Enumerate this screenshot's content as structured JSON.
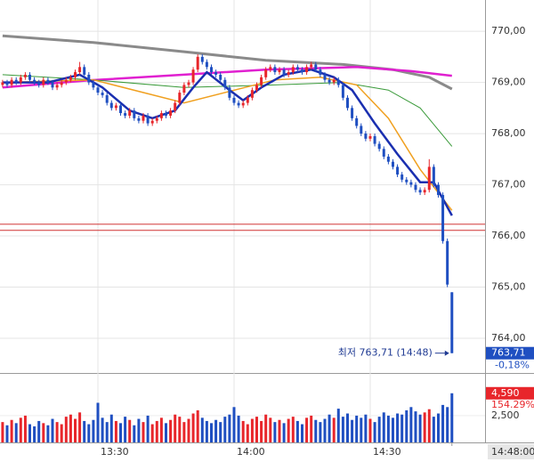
{
  "chart_data": {
    "type": "candlestick",
    "xlim": [
      -0.57,
      106.3
    ],
    "xticks": [
      {
        "value": 21,
        "label": "13:30"
      },
      {
        "value": 51,
        "label": "14:00"
      },
      {
        "value": 81,
        "label": "14:30"
      }
    ],
    "cursor_time": {
      "value": 99,
      "label": "14:48:00"
    },
    "ylim": [
      763.34,
      770.61
    ],
    "yticks": [
      {
        "value": 764,
        "label": "764,00"
      },
      {
        "value": 765,
        "label": "765,00"
      },
      {
        "value": 766,
        "label": "766,00"
      },
      {
        "value": 767,
        "label": "767,00"
      },
      {
        "value": 768,
        "label": "768,00"
      },
      {
        "value": 769,
        "label": "769,00"
      },
      {
        "value": 770,
        "label": "770,00"
      }
    ],
    "grid": true,
    "up_color": "#e8262b",
    "down_color": "#1f4fc1",
    "ohlc": [
      [
        768.95,
        769.05,
        768.9,
        769.0
      ],
      [
        769.0,
        769.05,
        768.9,
        768.95
      ],
      [
        768.95,
        769.1,
        768.9,
        769.05
      ],
      [
        769.05,
        769.1,
        768.95,
        769.0
      ],
      [
        769.0,
        769.15,
        768.95,
        769.1
      ],
      [
        769.1,
        769.2,
        769.05,
        769.15
      ],
      [
        769.15,
        769.2,
        769.0,
        769.05
      ],
      [
        769.05,
        769.1,
        768.95,
        769.0
      ],
      [
        769.0,
        769.05,
        768.9,
        768.95
      ],
      [
        768.95,
        769.1,
        768.9,
        769.05
      ],
      [
        769.05,
        769.1,
        768.95,
        769.0
      ],
      [
        769.0,
        769.05,
        768.85,
        768.9
      ],
      [
        768.9,
        769.0,
        768.85,
        768.95
      ],
      [
        768.95,
        769.05,
        768.9,
        769.0
      ],
      [
        769.0,
        769.1,
        768.95,
        769.05
      ],
      [
        769.05,
        769.15,
        769.0,
        769.1
      ],
      [
        769.1,
        769.25,
        769.05,
        769.2
      ],
      [
        769.2,
        769.4,
        769.15,
        769.3
      ],
      [
        769.3,
        769.35,
        769.1,
        769.15
      ],
      [
        769.15,
        769.2,
        768.95,
        769.0
      ],
      [
        769.0,
        769.05,
        768.85,
        768.9
      ],
      [
        768.9,
        768.95,
        768.75,
        768.8
      ],
      [
        768.8,
        768.85,
        768.7,
        768.75
      ],
      [
        768.75,
        768.8,
        768.55,
        768.6
      ],
      [
        768.6,
        768.65,
        768.45,
        768.5
      ],
      [
        768.5,
        768.6,
        768.45,
        768.55
      ],
      [
        768.55,
        768.6,
        768.35,
        768.4
      ],
      [
        768.4,
        768.45,
        768.3,
        768.35
      ],
      [
        768.35,
        768.5,
        768.3,
        768.45
      ],
      [
        768.45,
        768.5,
        768.25,
        768.3
      ],
      [
        768.3,
        768.35,
        768.2,
        768.25
      ],
      [
        768.25,
        768.4,
        768.2,
        768.35
      ],
      [
        768.35,
        768.4,
        768.15,
        768.2
      ],
      [
        768.2,
        768.3,
        768.15,
        768.25
      ],
      [
        768.25,
        768.35,
        768.2,
        768.3
      ],
      [
        768.3,
        768.45,
        768.25,
        768.4
      ],
      [
        768.4,
        768.45,
        768.3,
        768.35
      ],
      [
        768.35,
        768.5,
        768.3,
        768.45
      ],
      [
        768.45,
        768.65,
        768.4,
        768.6
      ],
      [
        768.6,
        768.85,
        768.55,
        768.8
      ],
      [
        768.8,
        769.0,
        768.75,
        768.95
      ],
      [
        768.95,
        769.05,
        768.9,
        769.0
      ],
      [
        769.0,
        769.3,
        768.95,
        769.25
      ],
      [
        769.25,
        769.55,
        769.2,
        769.5
      ],
      [
        769.5,
        769.55,
        769.35,
        769.4
      ],
      [
        769.4,
        769.45,
        769.25,
        769.3
      ],
      [
        769.3,
        769.35,
        769.15,
        769.2
      ],
      [
        769.2,
        769.25,
        769.1,
        769.15
      ],
      [
        769.15,
        769.2,
        769.0,
        769.05
      ],
      [
        769.05,
        769.1,
        768.85,
        768.9
      ],
      [
        768.9,
        768.95,
        768.65,
        768.7
      ],
      [
        768.7,
        768.75,
        768.55,
        768.6
      ],
      [
        768.6,
        768.65,
        768.5,
        768.55
      ],
      [
        768.55,
        768.65,
        768.5,
        768.6
      ],
      [
        768.6,
        768.75,
        768.55,
        768.7
      ],
      [
        768.7,
        768.9,
        768.65,
        768.85
      ],
      [
        768.85,
        769.0,
        768.8,
        768.95
      ],
      [
        768.95,
        769.15,
        768.9,
        769.1
      ],
      [
        769.1,
        769.3,
        769.05,
        769.25
      ],
      [
        769.25,
        769.35,
        769.2,
        769.3
      ],
      [
        769.3,
        769.35,
        769.15,
        769.2
      ],
      [
        769.2,
        769.3,
        769.15,
        769.25
      ],
      [
        769.25,
        769.3,
        769.1,
        769.15
      ],
      [
        769.15,
        769.25,
        769.1,
        769.2
      ],
      [
        769.2,
        769.35,
        769.15,
        769.3
      ],
      [
        769.3,
        769.35,
        769.2,
        769.25
      ],
      [
        769.25,
        769.3,
        769.15,
        769.2
      ],
      [
        769.2,
        769.35,
        769.15,
        769.3
      ],
      [
        769.3,
        769.4,
        769.25,
        769.35
      ],
      [
        769.35,
        769.4,
        769.2,
        769.25
      ],
      [
        769.25,
        769.3,
        769.1,
        769.15
      ],
      [
        769.15,
        769.2,
        769.0,
        769.05
      ],
      [
        769.05,
        769.1,
        768.95,
        769.0
      ],
      [
        769.0,
        769.1,
        768.95,
        769.05
      ],
      [
        769.05,
        769.1,
        768.9,
        768.95
      ],
      [
        768.95,
        769.0,
        768.65,
        768.7
      ],
      [
        768.7,
        768.75,
        768.45,
        768.5
      ],
      [
        768.5,
        768.55,
        768.25,
        768.3
      ],
      [
        768.3,
        768.35,
        768.1,
        768.15
      ],
      [
        768.15,
        768.2,
        767.95,
        768.0
      ],
      [
        768.0,
        768.05,
        767.85,
        767.9
      ],
      [
        767.9,
        768.0,
        767.85,
        767.95
      ],
      [
        767.95,
        768.0,
        767.75,
        767.8
      ],
      [
        767.8,
        767.85,
        767.65,
        767.7
      ],
      [
        767.7,
        767.75,
        767.5,
        767.55
      ],
      [
        767.55,
        767.6,
        767.4,
        767.45
      ],
      [
        767.45,
        767.5,
        767.3,
        767.35
      ],
      [
        767.35,
        767.4,
        767.15,
        767.2
      ],
      [
        767.2,
        767.25,
        767.05,
        767.1
      ],
      [
        767.1,
        767.15,
        767.0,
        767.05
      ],
      [
        767.05,
        767.1,
        766.95,
        767.0
      ],
      [
        767.0,
        767.05,
        766.85,
        766.9
      ],
      [
        766.9,
        766.95,
        766.8,
        766.85
      ],
      [
        766.85,
        766.95,
        766.8,
        766.9
      ],
      [
        766.9,
        767.5,
        766.85,
        767.35
      ],
      [
        767.35,
        767.4,
        766.95,
        767.0
      ],
      [
        767.0,
        767.05,
        766.75,
        766.8
      ],
      [
        766.8,
        766.85,
        765.85,
        765.9
      ],
      [
        765.9,
        765.95,
        765.0,
        765.05
      ],
      [
        764.9,
        764.9,
        763.71,
        763.71
      ]
    ],
    "lines": [
      {
        "color": "#8a8a8a",
        "width": 3,
        "x": [
          0,
          20,
          40,
          58,
          75,
          86,
          94,
          99
        ],
        "values": [
          769.91,
          769.78,
          769.6,
          769.43,
          769.35,
          769.25,
          769.1,
          768.87
        ]
      },
      {
        "color": "#e020d0",
        "width": 2.5,
        "x": [
          0,
          19,
          40,
          58,
          78,
          90,
          99
        ],
        "values": [
          768.9,
          769.04,
          769.15,
          769.25,
          769.3,
          769.22,
          769.13
        ]
      },
      {
        "color": "#3a9a3a",
        "width": 1,
        "x": [
          0,
          20,
          40,
          60,
          75,
          85,
          92,
          99
        ],
        "values": [
          769.15,
          769.05,
          768.9,
          768.95,
          769.0,
          768.85,
          768.5,
          767.75
        ]
      },
      {
        "color": "#f0a020",
        "width": 1.5,
        "x": [
          0,
          20,
          40,
          60,
          70,
          78,
          85,
          92,
          99
        ],
        "values": [
          769.0,
          769.05,
          768.6,
          769.05,
          769.1,
          768.95,
          768.3,
          767.3,
          766.5
        ]
      },
      {
        "color": "#1a2fb0",
        "width": 2.5,
        "x": [
          0,
          10,
          17,
          22,
          28,
          33,
          38,
          42,
          45,
          50,
          53,
          57,
          62,
          68,
          73,
          77,
          82,
          87,
          92,
          95,
          99
        ],
        "values": [
          769.0,
          769.0,
          769.15,
          768.9,
          768.45,
          768.3,
          768.45,
          768.9,
          769.2,
          768.85,
          768.65,
          768.9,
          769.15,
          769.25,
          769.1,
          768.85,
          768.2,
          767.6,
          767.05,
          767.05,
          766.4
        ]
      }
    ],
    "hlines": [
      766.23,
      766.11
    ],
    "hline_color": "#d03030",
    "annotation": "최저 763,71 (14:48)",
    "last_price": {
      "value": 763.71,
      "label": "763,71"
    },
    "change": "-0,18%",
    "volumes": [
      1900,
      1600,
      2100,
      1800,
      2300,
      2500,
      1700,
      1500,
      2000,
      1800,
      1600,
      2200,
      1900,
      1700,
      2400,
      2600,
      2200,
      2800,
      2000,
      1700,
      2100,
      3700,
      2300,
      1900,
      2600,
      2000,
      1800,
      2400,
      2100,
      1600,
      2200,
      1900,
      2500,
      1700,
      2000,
      2300,
      1800,
      2100,
      2600,
      2400,
      1900,
      2200,
      2700,
      3000,
      2300,
      2000,
      1800,
      2100,
      1900,
      2400,
      2600,
      3300,
      2500,
      2000,
      1700,
      2200,
      2400,
      2000,
      2600,
      2300,
      1900,
      2100,
      1800,
      2200,
      2400,
      2000,
      1700,
      2300,
      2500,
      2100,
      1900,
      2200,
      2600,
      2300,
      3150,
      2400,
      2700,
      2100,
      2500,
      2300,
      2600,
      2200,
      1900,
      2400,
      2800,
      2500,
      2300,
      2700,
      2600,
      3000,
      3300,
      2900,
      2600,
      2800,
      3100,
      2400,
      2700,
      3500,
      3300,
      4590
    ],
    "volume_ylim": [
      0,
      6400
    ],
    "volume_yticks": [
      {
        "value": 2500,
        "label": "2,500"
      }
    ],
    "last_volume": {
      "value": 4590,
      "label": "4,590"
    },
    "volume_change": "154.29%"
  }
}
